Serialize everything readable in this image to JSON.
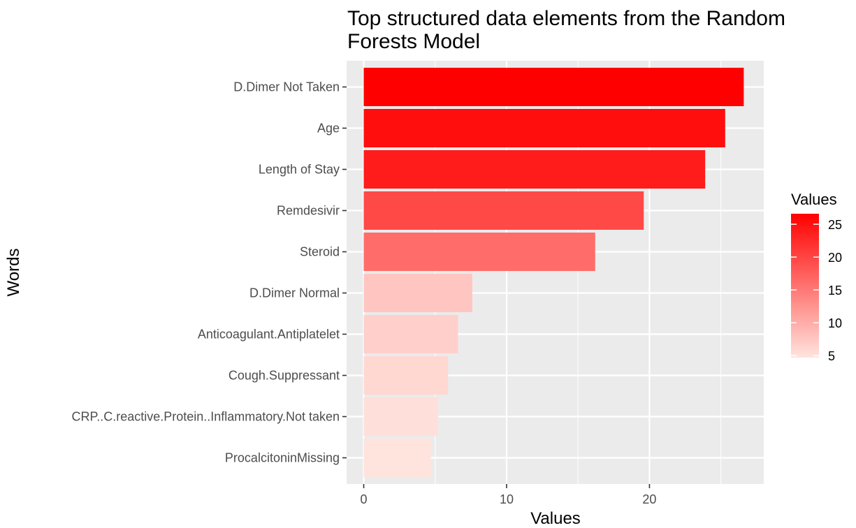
{
  "chart_data": {
    "type": "bar",
    "orientation": "horizontal",
    "title": "Top structured data elements from the Random Forests Model",
    "title_lines": [
      "Top structured data elements from the Random",
      "Forests Model"
    ],
    "xlabel": "Values",
    "ylabel": "Words",
    "categories": [
      "D.Dimer Not Taken",
      "Age",
      "Length of Stay",
      "Remdesivir",
      "Steroid",
      "D.Dimer Normal",
      "Anticoagulant.Antiplatelet",
      "Cough.Suppressant",
      "CRP..C.reactive.Protein..Inflammatory.Not taken",
      "ProcalcitoninMissing"
    ],
    "values": [
      26.6,
      25.3,
      23.9,
      19.6,
      16.2,
      7.6,
      6.6,
      5.9,
      5.2,
      4.7
    ],
    "xlim": [
      -1.2,
      28.0
    ],
    "xticks": [
      0,
      10,
      20
    ],
    "xtick_labels": [
      "0",
      "10",
      "20"
    ],
    "grid": true,
    "background": "#ebebeb",
    "colorscale": {
      "low": "#ffe4de",
      "high": "#ff0000",
      "min": 4.7,
      "max": 26.6
    },
    "legend": {
      "title": "Values",
      "placement": "right",
      "ticks": [
        25,
        20,
        15,
        10,
        5
      ],
      "tick_labels": [
        "25",
        "20",
        "15",
        "10",
        "5"
      ]
    }
  }
}
